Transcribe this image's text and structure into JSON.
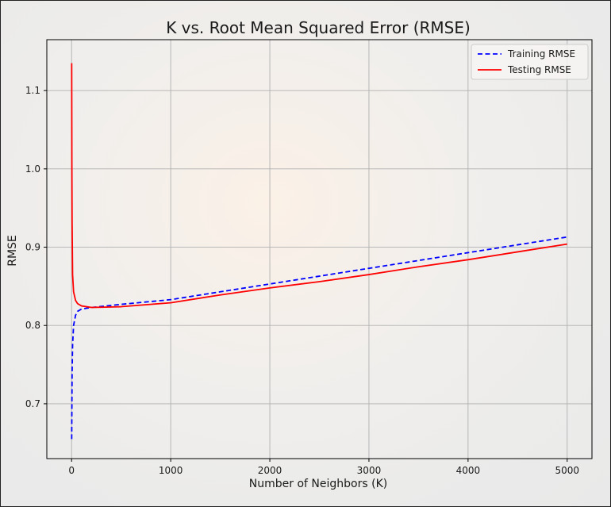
{
  "chart_data": {
    "type": "line",
    "title": "K vs. Root Mean Squared Error (RMSE)",
    "xlabel": "Number of Neighbors (K)",
    "ylabel": "RMSE",
    "xlim": [
      -250,
      5250
    ],
    "ylim": [
      0.63,
      1.165
    ],
    "x_ticks": [
      0,
      1000,
      2000,
      3000,
      4000,
      5000
    ],
    "x_tick_labels": [
      "0",
      "1000",
      "2000",
      "3000",
      "4000",
      "5000"
    ],
    "y_ticks": [
      0.7,
      0.8,
      0.9,
      1.0,
      1.1
    ],
    "y_tick_labels": [
      "0.7",
      "0.8",
      "0.9",
      "1.0",
      "1.1"
    ],
    "grid": true,
    "legend_position": "top-right",
    "series": [
      {
        "name": "Training RMSE",
        "color": "#0000ff",
        "style": "dashed",
        "x": [
          1,
          5,
          10,
          20,
          40,
          60,
          100,
          200,
          500,
          1000,
          1500,
          2000,
          2500,
          3000,
          3500,
          4000,
          4500,
          5000
        ],
        "y": [
          0.655,
          0.74,
          0.775,
          0.8,
          0.813,
          0.818,
          0.821,
          0.823,
          0.827,
          0.833,
          0.843,
          0.853,
          0.863,
          0.873,
          0.883,
          0.893,
          0.903,
          0.913
        ]
      },
      {
        "name": "Testing RMSE",
        "color": "#ff0000",
        "style": "solid",
        "x": [
          1,
          3,
          5,
          10,
          20,
          40,
          60,
          100,
          200,
          500,
          1000,
          1500,
          2000,
          2500,
          3000,
          3500,
          4000,
          4500,
          5000
        ],
        "y": [
          1.135,
          1.0,
          0.93,
          0.865,
          0.843,
          0.832,
          0.828,
          0.825,
          0.823,
          0.824,
          0.829,
          0.839,
          0.848,
          0.856,
          0.865,
          0.875,
          0.884,
          0.894,
          0.904
        ]
      }
    ]
  }
}
